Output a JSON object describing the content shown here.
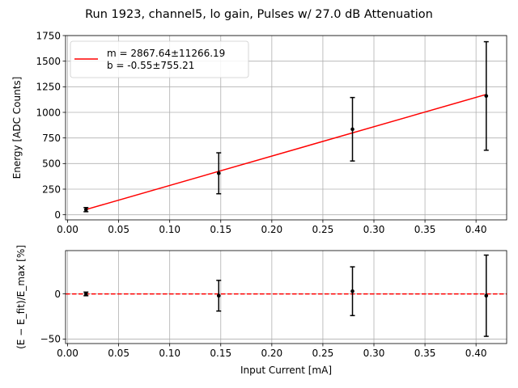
{
  "chart_data": [
    {
      "type": "scatter",
      "title": "Run 1923, channel5, lo gain, Pulses w/ 27.0 dB Attenuation",
      "xlabel": "",
      "ylabel": "Energy [ADC Counts]",
      "xlim": [
        -0.002,
        0.43
      ],
      "ylim": [
        -50,
        1750
      ],
      "grid": true,
      "xticks": [
        "0.00",
        "0.05",
        "0.10",
        "0.15",
        "0.20",
        "0.25",
        "0.30",
        "0.35",
        "0.40"
      ],
      "yticks": [
        "0",
        "250",
        "500",
        "750",
        "1000",
        "1250",
        "1500",
        "1750"
      ],
      "legend_position": "top-left",
      "legend": [
        "m = 2867.64±11266.19",
        "b = -0.55±755.21"
      ],
      "points": [
        {
          "x": 0.018,
          "y": 50,
          "yerr": 20
        },
        {
          "x": 0.148,
          "y": 405,
          "yerr": 200
        },
        {
          "x": 0.279,
          "y": 835,
          "yerr": 310
        },
        {
          "x": 0.41,
          "y": 1160,
          "yerr": 530
        }
      ],
      "fit_line": {
        "slope": 2867.64,
        "intercept": -0.55,
        "x": [
          0.018,
          0.41
        ],
        "color": "#ff0000"
      },
      "marker_color": "#000000"
    },
    {
      "type": "scatter",
      "title": "",
      "xlabel": "Input Current [mA]",
      "ylabel": "(E − E_fit)/E_max [%]",
      "xlim": [
        -0.002,
        0.43
      ],
      "ylim": [
        -55,
        48
      ],
      "grid": true,
      "xticks": [
        "0.00",
        "0.05",
        "0.10",
        "0.15",
        "0.20",
        "0.25",
        "0.30",
        "0.35",
        "0.40"
      ],
      "yticks": [
        "−50",
        "0"
      ],
      "reference_line": {
        "y": 0,
        "style": "dashed",
        "color": "#ff0000"
      },
      "points": [
        {
          "x": 0.018,
          "y": 0,
          "yerr": 2
        },
        {
          "x": 0.148,
          "y": -2,
          "yerr": 17
        },
        {
          "x": 0.279,
          "y": 3,
          "yerr": 27
        },
        {
          "x": 0.41,
          "y": -2,
          "yerr": 45
        }
      ],
      "marker_color": "#000000"
    }
  ]
}
